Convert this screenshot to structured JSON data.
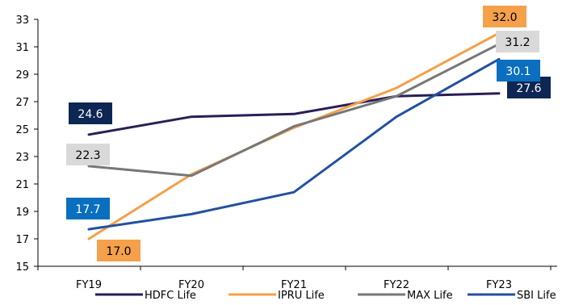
{
  "chart_data": {
    "type": "line",
    "categories": [
      "FY19",
      "FY20",
      "FY21",
      "FY22",
      "FY23"
    ],
    "ylim": [
      15,
      33
    ],
    "yticks": [
      15,
      17,
      19,
      21,
      23,
      25,
      27,
      29,
      31,
      33
    ],
    "grid": false,
    "legend": "bottom",
    "series": [
      {
        "name": "HDFC Life",
        "color": "#2b1d55",
        "values": [
          24.6,
          25.9,
          26.1,
          27.4,
          27.6
        ]
      },
      {
        "name": "IPRU Life",
        "color": "#f5a04a",
        "values": [
          17.0,
          21.7,
          25.1,
          28.0,
          32.0
        ]
      },
      {
        "name": "MAX Life",
        "color": "#777777",
        "values": [
          22.3,
          21.6,
          25.2,
          27.4,
          31.2
        ]
      },
      {
        "name": "SBI Life",
        "color": "#2350a0",
        "values": [
          17.7,
          18.8,
          20.4,
          25.9,
          30.1
        ]
      }
    ],
    "data_labels": [
      {
        "series": 0,
        "point": 0,
        "text": "24.6",
        "bg": "#0d2653",
        "fg": "#ffffff"
      },
      {
        "series": 0,
        "point": 4,
        "text": "27.6",
        "bg": "#0d2653",
        "fg": "#ffffff"
      },
      {
        "series": 1,
        "point": 0,
        "text": "17.0",
        "bg": "#f5a04a",
        "fg": "#000000"
      },
      {
        "series": 1,
        "point": 4,
        "text": "32.0",
        "bg": "#f5a04a",
        "fg": "#000000"
      },
      {
        "series": 2,
        "point": 0,
        "text": "22.3",
        "bg": "#d9d9d9",
        "fg": "#000000"
      },
      {
        "series": 2,
        "point": 4,
        "text": "31.2",
        "bg": "#d9d9d9",
        "fg": "#000000"
      },
      {
        "series": 3,
        "point": 0,
        "text": "17.7",
        "bg": "#0a6fbf",
        "fg": "#ffffff"
      },
      {
        "series": 3,
        "point": 4,
        "text": "30.1",
        "bg": "#0a6fbf",
        "fg": "#ffffff"
      }
    ]
  }
}
